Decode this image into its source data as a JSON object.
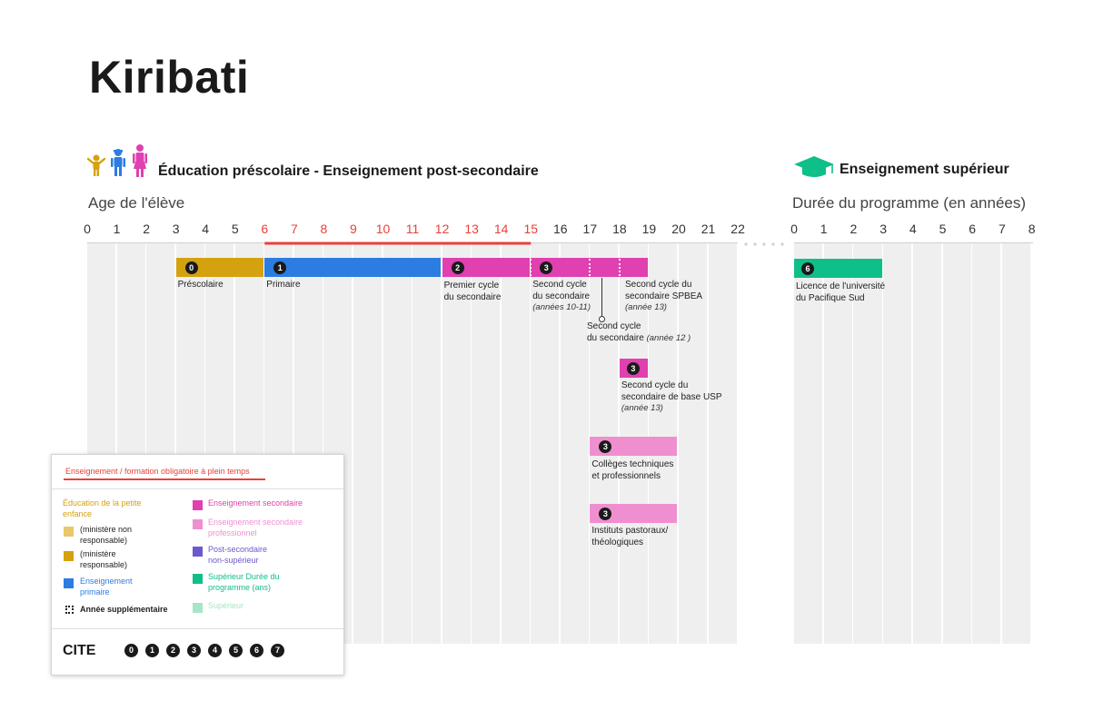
{
  "country": "Kiribati",
  "left_section": {
    "title": "Éducation préscolaire - Enseignement post-secondaire",
    "axis_title": "Age de l'élève",
    "ticks": [
      "0",
      "1",
      "2",
      "3",
      "4",
      "5",
      "6",
      "7",
      "8",
      "9",
      "10",
      "11",
      "12",
      "13",
      "14",
      "15",
      "16",
      "17",
      "18",
      "19",
      "20",
      "21",
      "22"
    ]
  },
  "right_section": {
    "title": "Enseignement supérieur",
    "axis_title": "Durée du programme (en années)",
    "ticks": [
      "0",
      "1",
      "2",
      "3",
      "4",
      "5",
      "6",
      "7",
      "8"
    ]
  },
  "compulsory": {
    "start_age": 6,
    "end_age": 15
  },
  "programmes": [
    {
      "id": "prescolaire",
      "level": "0",
      "start": 3,
      "end": 6,
      "color": "#d4a20f",
      "label": [
        "Préscolaire"
      ],
      "note": ""
    },
    {
      "id": "primaire",
      "level": "1",
      "start": 6,
      "end": 12,
      "color": "#2b7de1",
      "label": [
        "Primaire"
      ],
      "note": ""
    },
    {
      "id": "premier-cycle",
      "level": "2",
      "start": 12,
      "end": 15,
      "color": "#e040b0",
      "label": [
        "Premier cycle",
        "du secondaire"
      ],
      "note": ""
    },
    {
      "id": "second-cycle",
      "level": "3",
      "start": 15,
      "end": 19,
      "color": "#e040b0",
      "label": [
        "Second cycle",
        "du secondaire"
      ],
      "note": "(années 10-11)"
    },
    {
      "id": "second-cycle-usp",
      "level": "3",
      "start": 18,
      "end": 19,
      "color": "#e040b0",
      "label": [
        "Second cycle du",
        "secondaire de base USP"
      ],
      "note": "(année 13)"
    },
    {
      "id": "colleges-techniques",
      "level": "3",
      "start": 17,
      "end": 20,
      "color": "#f08fd0",
      "label": [
        "Collèges techniques",
        "et professionnels"
      ],
      "note": ""
    },
    {
      "id": "instituts-pastoraux",
      "level": "3",
      "start": 17,
      "end": 20,
      "color": "#f08fd0",
      "label": [
        "Instituts pastoraux/",
        "théologiques"
      ],
      "note": ""
    }
  ],
  "extra_labels": {
    "spbea": {
      "label": [
        "Second cycle du",
        "secondaire SPBEA"
      ],
      "note": "(année 13)"
    },
    "annee12": {
      "label": [
        "Second cycle",
        "du secondaire"
      ],
      "note": "(année 12 )"
    }
  },
  "tertiary": [
    {
      "id": "licence",
      "level": "6",
      "start": 0,
      "end": 3,
      "color": "#0fbf8a",
      "label": [
        "Licence de l'université",
        "du Pacifique Sud"
      ]
    }
  ],
  "legend": {
    "title": "Enseignement / formation obligatoire à plein temps",
    "ece_heading": "Éducation de la petite enfance",
    "ece_heading_lines": [
      "Éducation de la petite",
      "enfance"
    ],
    "items_left": [
      {
        "lines": [
          "(ministère non",
          "responsable)"
        ],
        "color": "#e8c86a",
        "text_color": "#222"
      },
      {
        "lines": [
          "(ministère",
          "responsable)"
        ],
        "color": "#d4a20f",
        "text_color": "#222"
      },
      {
        "lines": [
          "Enseignement",
          "primaire"
        ],
        "color": "#2b7de1",
        "text_color": "#2b7de1"
      },
      {
        "lines": [
          "Année supplémentaire"
        ],
        "color": "dotted",
        "text_color": "#222"
      }
    ],
    "items_right": [
      {
        "lines": [
          "Enseignement secondaire"
        ],
        "color": "#e040b0",
        "text_color": "#e040b0"
      },
      {
        "lines": [
          "Enseignement secondaire",
          "professionnel"
        ],
        "color": "#f08fd0",
        "text_color": "#f08fd0"
      },
      {
        "lines": [
          "Post-secondaire",
          "non-supérieur"
        ],
        "color": "#6a5acd",
        "text_color": "#6a5acd"
      },
      {
        "lines": [
          "Supérieur Durée du",
          "programme (ans)"
        ],
        "color": "#0fbf8a",
        "text_color": "#0fbf8a"
      },
      {
        "lines": [
          "Supérieur"
        ],
        "color": "#a6e6c4",
        "text_color": "#a6e6c4"
      }
    ],
    "cite_label": "CITE",
    "cite_levels": [
      "0",
      "1",
      "2",
      "3",
      "4",
      "5",
      "6",
      "7"
    ]
  },
  "colors": {
    "accent_red": "#e8413a",
    "grid_bg": "#efefef"
  }
}
